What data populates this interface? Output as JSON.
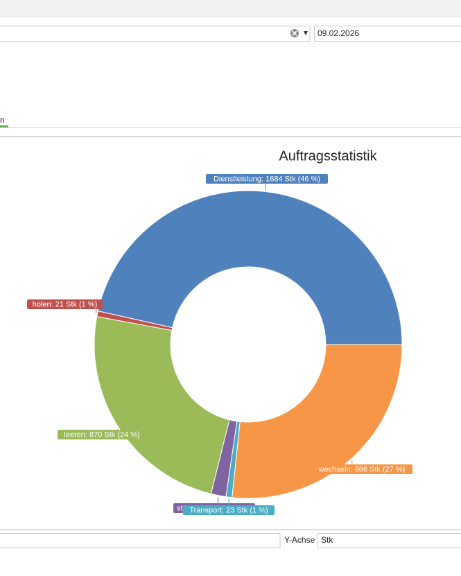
{
  "ui": {
    "date": "09.02.2026",
    "tab": "n",
    "y_axis_label": "Y-Achse",
    "y_axis_unit": "Stk"
  },
  "chart_data": {
    "type": "pie",
    "title": "Auftragsstatistik",
    "donut": true,
    "categories": [
      "wechseln",
      "Transport",
      "st",
      "leeren",
      "holen",
      "Dienstleistung"
    ],
    "values": [
      966,
      23,
      57,
      870,
      21,
      1684
    ],
    "value_labels": [
      "wechseln: 966 Stk (27 %)",
      "Transport: 23 Stk (1 %)",
      null,
      "leeren: 870 Stk (24 %)",
      "holen: 21 Stk (1 %)",
      "Dienstleistung: 1684 Stk (46 %)"
    ],
    "colors": [
      "#f79646",
      "#4bacc6",
      "#8064a2",
      "#9bbb59",
      "#c0504d",
      "#4f81bd"
    ]
  }
}
